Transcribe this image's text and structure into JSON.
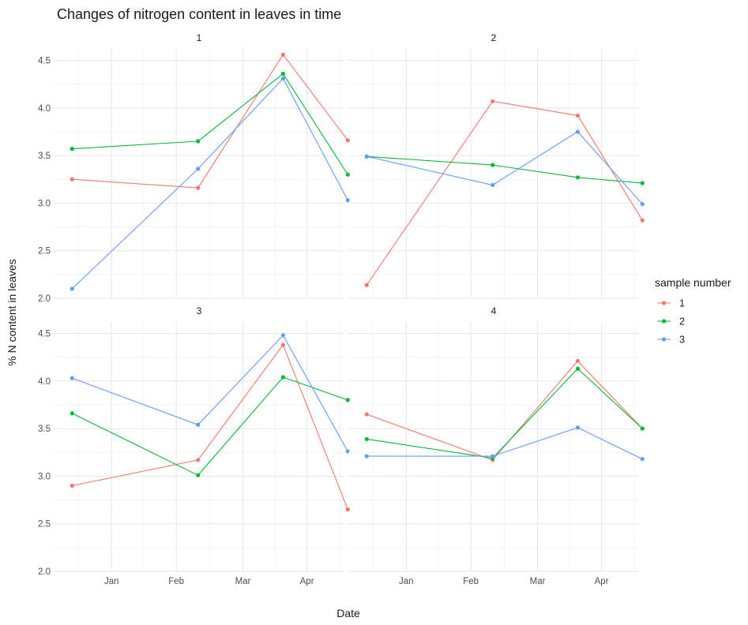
{
  "chart_data": {
    "type": "line",
    "title": "Changes of nitrogen content in leaves in time",
    "xlabel": "Date",
    "ylabel": "% N content in leaves",
    "x_ticks": [
      "Jan",
      "Feb",
      "Mar",
      "Apr"
    ],
    "y_ticks": [
      "2.0",
      "2.5",
      "3.0",
      "3.5",
      "4.0",
      "4.5"
    ],
    "ylim": [
      2.0,
      4.62
    ],
    "x_domain": [
      -0.27,
      4.0
    ],
    "grid": true,
    "legend": {
      "title": "sample number",
      "position": "right",
      "entries": [
        "1",
        "2",
        "3"
      ]
    },
    "series_colors": {
      "1": "#F8766D",
      "2": "#00BA38",
      "3": "#619CFF"
    },
    "facets": [
      {
        "panel": "1",
        "x": [
          0.0,
          1.85,
          3.1,
          4.05
        ],
        "series": [
          {
            "name": "1",
            "values": [
              3.25,
              3.16,
              4.56,
              3.66
            ]
          },
          {
            "name": "2",
            "values": [
              3.57,
              3.65,
              4.36,
              3.3
            ]
          },
          {
            "name": "3",
            "values": [
              2.1,
              3.36,
              4.31,
              3.03
            ]
          }
        ]
      },
      {
        "panel": "2",
        "x": [
          0.0,
          1.85,
          3.1,
          4.05
        ],
        "series": [
          {
            "name": "1",
            "values": [
              2.14,
              4.07,
              3.92,
              2.82
            ]
          },
          {
            "name": "2",
            "values": [
              3.49,
              3.4,
              3.27,
              3.21
            ]
          },
          {
            "name": "3",
            "values": [
              3.49,
              3.19,
              3.75,
              2.99
            ]
          }
        ]
      },
      {
        "panel": "3",
        "x": [
          0.0,
          1.85,
          3.1,
          4.05
        ],
        "series": [
          {
            "name": "1",
            "values": [
              2.9,
              3.17,
              4.38,
              2.65
            ]
          },
          {
            "name": "2",
            "values": [
              3.66,
              3.01,
              4.04,
              3.8
            ]
          },
          {
            "name": "3",
            "values": [
              4.03,
              3.54,
              4.48,
              3.26
            ]
          }
        ]
      },
      {
        "panel": "4",
        "x": [
          0.0,
          1.85,
          3.1,
          4.05
        ],
        "series": [
          {
            "name": "1",
            "values": [
              3.65,
              3.17,
              4.21,
              3.5
            ]
          },
          {
            "name": "2",
            "values": [
              3.39,
              3.19,
              4.13,
              3.5
            ]
          },
          {
            "name": "3",
            "values": [
              3.21,
              3.21,
              3.51,
              3.18
            ]
          }
        ]
      }
    ]
  }
}
